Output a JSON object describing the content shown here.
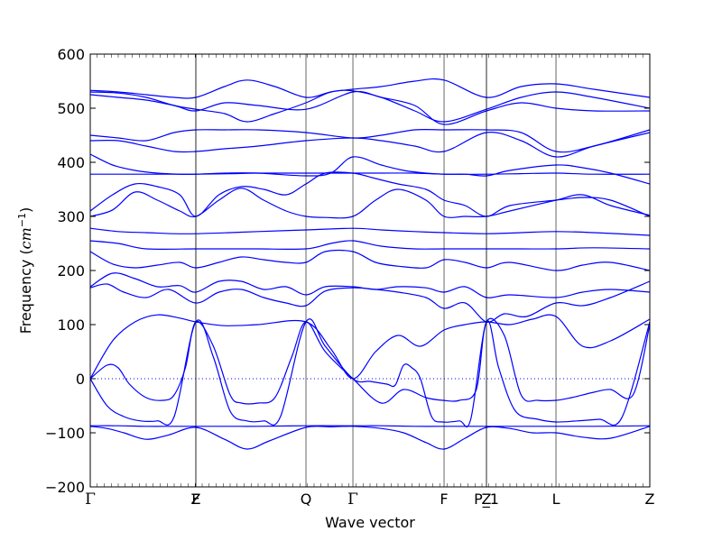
{
  "chart_data": {
    "type": "line",
    "title": "",
    "xlabel": "Wave vector",
    "ylabel_prefix": "Frequency (",
    "ylabel_unit": "cm",
    "ylabel_exp": "−1",
    "ylabel_suffix": ")",
    "ylim": [
      -200,
      600
    ],
    "yticks": [
      -200,
      -100,
      0,
      100,
      200,
      300,
      400,
      500,
      600
    ],
    "ytick_labels": [
      "−200",
      "−100",
      "0",
      "100",
      "200",
      "300",
      "400",
      "500",
      "600"
    ],
    "grid": false,
    "zero_line": {
      "style": "dotted",
      "color": "#0000ff"
    },
    "line_color": "#0000ff",
    "xlim": [
      0,
      1.0
    ],
    "kpoints": [
      {
        "label": "Γ",
        "x": 0.0
      },
      {
        "label": "Z",
        "x": 0.1887
      },
      {
        "label": "F",
        "x": 0.1887
      },
      {
        "label": "Q",
        "x": 0.3855
      },
      {
        "label": "Γ",
        "x": 0.4694
      },
      {
        "label": "F",
        "x": 0.6323
      },
      {
        "label": "P_1",
        "x": 0.7081
      },
      {
        "label": "Z",
        "x": 0.7081
      },
      {
        "label": "L",
        "x": 0.8323
      },
      {
        "label": "Z",
        "x": 1.0
      }
    ],
    "series": [
      {
        "x": [
          0,
          0.03,
          0.06,
          0.1,
          0.14,
          0.1887,
          0.24,
          0.28,
          0.32,
          0.3855,
          0.43,
          0.4694,
          0.52,
          0.56,
          0.6,
          0.6323,
          0.67,
          0.7081,
          0.75,
          0.79,
          0.8323,
          0.88,
          0.93,
          1.0
        ],
        "y": [
          -88,
          -92,
          -100,
          -112,
          -104,
          -90,
          -112,
          -130,
          -115,
          -90,
          -89,
          -88,
          -92,
          -100,
          -118,
          -130,
          -110,
          -90,
          -92,
          -100,
          -100,
          -108,
          -110,
          -88
        ]
      },
      {
        "x": [
          0,
          0.05,
          0.1,
          0.15,
          0.1887,
          0.25,
          0.3,
          0.3855,
          0.4694,
          0.52,
          0.58,
          0.6323,
          0.7081,
          0.76,
          0.8323,
          0.9,
          1.0
        ],
        "y": [
          -87,
          -87,
          -88,
          -88,
          -88,
          -88,
          -88,
          -87,
          -87,
          -87,
          -88,
          -88,
          -88,
          -88,
          -88,
          -88,
          -87
        ]
      },
      {
        "x": [
          0,
          0.03,
          0.05,
          0.07,
          0.1,
          0.13,
          0.15,
          0.17,
          0.1887,
          0.22,
          0.25,
          0.27,
          0.3,
          0.33,
          0.36,
          0.3855,
          0.42,
          0.4694,
          0.52,
          0.56,
          0.6,
          0.63,
          0.66,
          0.69,
          0.7081,
          0.74,
          0.77,
          0.8,
          0.8323,
          0.86,
          0.9,
          0.93,
          0.97,
          1.0
        ],
        "y": [
          0,
          25,
          20,
          -10,
          -35,
          -40,
          -30,
          20,
          105,
          60,
          -30,
          -45,
          -45,
          -35,
          40,
          105,
          50,
          0,
          -45,
          -20,
          -35,
          -40,
          -40,
          -20,
          105,
          80,
          -30,
          -40,
          -40,
          -35,
          -25,
          -20,
          -30,
          100
        ]
      },
      {
        "x": [
          0,
          0.03,
          0.06,
          0.09,
          0.12,
          0.15,
          0.1887,
          0.22,
          0.25,
          0.28,
          0.31,
          0.34,
          0.3855,
          0.42,
          0.4694,
          0.5,
          0.53,
          0.545,
          0.56,
          0.575,
          0.59,
          0.61,
          0.63,
          0.66,
          0.68,
          0.7081,
          0.73,
          0.76,
          0.8,
          0.8323,
          0.87,
          0.91,
          0.95,
          1.0
        ],
        "y": [
          0,
          -50,
          -70,
          -78,
          -78,
          -70,
          105,
          40,
          -60,
          -78,
          -78,
          -70,
          105,
          60,
          0,
          -5,
          -10,
          -12,
          25,
          20,
          0,
          -70,
          -80,
          -78,
          -75,
          105,
          20,
          -60,
          -75,
          -80,
          -78,
          -75,
          -72,
          105
        ]
      },
      {
        "x": [
          0,
          0.04,
          0.08,
          0.12,
          0.16,
          0.1887,
          0.24,
          0.3,
          0.3855,
          0.43,
          0.4694,
          0.51,
          0.55,
          0.59,
          0.6323,
          0.67,
          0.7081,
          0.75,
          0.79,
          0.8323,
          0.88,
          0.93,
          1.0
        ],
        "y": [
          0,
          70,
          105,
          118,
          112,
          105,
          98,
          100,
          105,
          55,
          0,
          50,
          80,
          60,
          90,
          100,
          105,
          100,
          110,
          115,
          60,
          70,
          110
        ]
      },
      {
        "x": [
          0,
          0.03,
          0.06,
          0.1,
          0.14,
          0.1887,
          0.23,
          0.27,
          0.31,
          0.35,
          0.3855,
          0.42,
          0.4694,
          0.51,
          0.55,
          0.6,
          0.6323,
          0.67,
          0.7081,
          0.74,
          0.78,
          0.8323,
          0.88,
          0.93,
          1.0
        ],
        "y": [
          168,
          175,
          160,
          150,
          165,
          140,
          160,
          165,
          150,
          140,
          135,
          162,
          168,
          165,
          160,
          150,
          130,
          140,
          105,
          120,
          115,
          140,
          135,
          150,
          180
        ]
      },
      {
        "x": [
          0,
          0.04,
          0.08,
          0.12,
          0.16,
          0.1887,
          0.23,
          0.27,
          0.31,
          0.35,
          0.3855,
          0.42,
          0.4694,
          0.51,
          0.55,
          0.6,
          0.6323,
          0.67,
          0.7081,
          0.75,
          0.8323,
          0.88,
          0.93,
          1.0
        ],
        "y": [
          170,
          195,
          185,
          170,
          172,
          160,
          180,
          180,
          165,
          170,
          155,
          170,
          170,
          165,
          170,
          168,
          160,
          170,
          150,
          155,
          150,
          160,
          165,
          160
        ]
      },
      {
        "x": [
          0,
          0.04,
          0.08,
          0.12,
          0.16,
          0.1887,
          0.23,
          0.27,
          0.31,
          0.35,
          0.3855,
          0.42,
          0.4694,
          0.51,
          0.55,
          0.6,
          0.6323,
          0.67,
          0.7081,
          0.75,
          0.8323,
          0.88,
          0.93,
          1.0
        ],
        "y": [
          235,
          212,
          205,
          210,
          215,
          205,
          215,
          225,
          220,
          215,
          215,
          235,
          235,
          215,
          208,
          205,
          220,
          215,
          205,
          215,
          200,
          210,
          215,
          200
        ]
      },
      {
        "x": [
          0,
          0.05,
          0.1,
          0.1887,
          0.25,
          0.3,
          0.3855,
          0.43,
          0.4694,
          0.52,
          0.58,
          0.6323,
          0.7081,
          0.77,
          0.8323,
          0.9,
          1.0
        ],
        "y": [
          255,
          250,
          240,
          240,
          240,
          240,
          240,
          250,
          255,
          245,
          240,
          240,
          240,
          240,
          240,
          242,
          240
        ]
      },
      {
        "x": [
          0,
          0.05,
          0.1,
          0.15,
          0.1887,
          0.25,
          0.3,
          0.3855,
          0.4694,
          0.52,
          0.58,
          0.6323,
          0.7081,
          0.77,
          0.8323,
          0.9,
          1.0
        ],
        "y": [
          278,
          272,
          270,
          268,
          268,
          270,
          272,
          275,
          278,
          275,
          272,
          270,
          268,
          270,
          272,
          270,
          265
        ]
      },
      {
        "x": [
          0,
          0.04,
          0.08,
          0.12,
          0.16,
          0.1887,
          0.23,
          0.27,
          0.31,
          0.35,
          0.3855,
          0.42,
          0.4694,
          0.51,
          0.55,
          0.6,
          0.6323,
          0.67,
          0.7081,
          0.75,
          0.8323,
          0.88,
          0.93,
          1.0
        ],
        "y": [
          300,
          312,
          345,
          330,
          310,
          300,
          330,
          352,
          330,
          310,
          300,
          298,
          300,
          330,
          350,
          330,
          300,
          300,
          300,
          310,
          330,
          340,
          320,
          302
        ]
      },
      {
        "x": [
          0,
          0.04,
          0.08,
          0.12,
          0.16,
          0.1887,
          0.23,
          0.27,
          0.31,
          0.35,
          0.3855,
          0.42,
          0.4694,
          0.51,
          0.55,
          0.6,
          0.6323,
          0.67,
          0.7081,
          0.75,
          0.8323,
          0.88,
          0.93,
          1.0
        ],
        "y": [
          310,
          340,
          360,
          355,
          340,
          300,
          340,
          355,
          350,
          340,
          360,
          380,
          380,
          370,
          360,
          350,
          330,
          320,
          300,
          320,
          330,
          335,
          330,
          300
        ]
      },
      {
        "x": [
          0,
          0.05,
          0.1,
          0.15,
          0.1887,
          0.25,
          0.3,
          0.3855,
          0.4694,
          0.52,
          0.58,
          0.6323,
          0.7081,
          0.77,
          0.8323,
          0.9,
          1.0
        ],
        "y": [
          378,
          378,
          378,
          378,
          378,
          379,
          380,
          380,
          380,
          380,
          380,
          378,
          378,
          379,
          380,
          378,
          378
        ]
      },
      {
        "x": [
          0,
          0.04,
          0.08,
          0.12,
          0.16,
          0.1887,
          0.24,
          0.3,
          0.3855,
          0.43,
          0.4694,
          0.52,
          0.56,
          0.6,
          0.6323,
          0.67,
          0.7081,
          0.75,
          0.8323,
          0.88,
          0.93,
          1.0
        ],
        "y": [
          415,
          395,
          385,
          380,
          378,
          378,
          380,
          380,
          375,
          380,
          410,
          395,
          385,
          380,
          378,
          378,
          375,
          385,
          395,
          390,
          380,
          360
        ]
      },
      {
        "x": [
          0,
          0.05,
          0.1,
          0.15,
          0.1887,
          0.24,
          0.3,
          0.3855,
          0.4694,
          0.52,
          0.58,
          0.6323,
          0.7081,
          0.77,
          0.8323,
          0.9,
          1.0
        ],
        "y": [
          440,
          440,
          430,
          420,
          420,
          425,
          430,
          440,
          445,
          440,
          430,
          420,
          455,
          440,
          410,
          430,
          455
        ]
      },
      {
        "x": [
          0,
          0.05,
          0.1,
          0.15,
          0.1887,
          0.24,
          0.3,
          0.3855,
          0.4694,
          0.52,
          0.58,
          0.6323,
          0.7081,
          0.77,
          0.8323,
          0.9,
          1.0
        ],
        "y": [
          450,
          445,
          440,
          455,
          460,
          460,
          460,
          455,
          445,
          450,
          460,
          460,
          460,
          455,
          420,
          430,
          460
        ]
      },
      {
        "x": [
          0,
          0.05,
          0.1,
          0.15,
          0.1887,
          0.24,
          0.3,
          0.3855,
          0.4694,
          0.52,
          0.58,
          0.6323,
          0.7081,
          0.77,
          0.8323,
          0.9,
          1.0
        ],
        "y": [
          525,
          520,
          515,
          505,
          495,
          510,
          505,
          498,
          530,
          520,
          505,
          470,
          495,
          510,
          500,
          495,
          495
        ]
      },
      {
        "x": [
          0,
          0.05,
          0.1,
          0.15,
          0.1887,
          0.24,
          0.28,
          0.33,
          0.3855,
          0.43,
          0.4694,
          0.52,
          0.58,
          0.6323,
          0.7081,
          0.77,
          0.8323,
          0.9,
          1.0
        ],
        "y": [
          533,
          530,
          525,
          520,
          520,
          540,
          552,
          540,
          520,
          530,
          535,
          540,
          550,
          552,
          520,
          540,
          545,
          535,
          520
        ]
      },
      {
        "x": [
          0,
          0.05,
          0.1,
          0.15,
          0.1887,
          0.24,
          0.28,
          0.33,
          0.3855,
          0.43,
          0.4694,
          0.52,
          0.58,
          0.6323,
          0.7081,
          0.77,
          0.8323,
          0.9,
          1.0
        ],
        "y": [
          530,
          528,
          520,
          505,
          498,
          490,
          475,
          490,
          510,
          530,
          532,
          520,
          495,
          475,
          498,
          520,
          530,
          520,
          500
        ]
      }
    ]
  }
}
